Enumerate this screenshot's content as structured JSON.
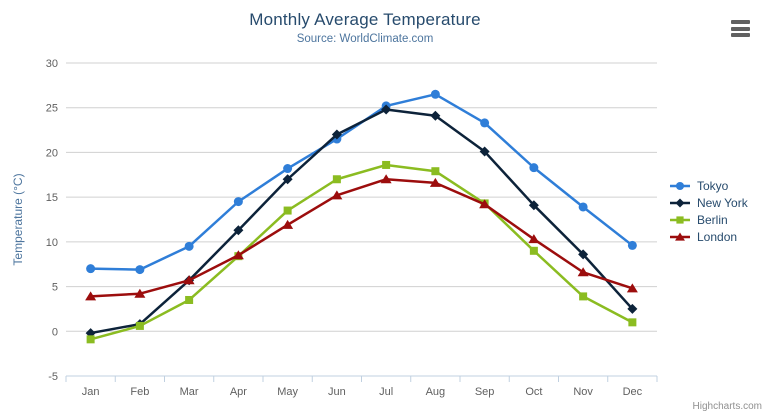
{
  "credits": "Highcharts.com",
  "chart_data": {
    "type": "line",
    "title": "Monthly Average Temperature",
    "subtitle": "Source: WorldClimate.com",
    "categories": [
      "Jan",
      "Feb",
      "Mar",
      "Apr",
      "May",
      "Jun",
      "Jul",
      "Aug",
      "Sep",
      "Oct",
      "Nov",
      "Dec"
    ],
    "series": [
      {
        "name": "Tokyo",
        "color": "#2f7ed8",
        "marker": "circle",
        "values": [
          7.0,
          6.9,
          9.5,
          14.5,
          18.2,
          21.5,
          25.2,
          26.5,
          23.3,
          18.3,
          13.9,
          9.6
        ]
      },
      {
        "name": "New York",
        "color": "#0d233a",
        "marker": "diamond",
        "values": [
          -0.2,
          0.8,
          5.7,
          11.3,
          17.0,
          22.0,
          24.8,
          24.1,
          20.1,
          14.1,
          8.6,
          2.5
        ]
      },
      {
        "name": "Berlin",
        "color": "#8bbc21",
        "marker": "square",
        "values": [
          -0.9,
          0.6,
          3.5,
          8.4,
          13.5,
          17.0,
          18.6,
          17.9,
          14.3,
          9.0,
          3.9,
          1.0
        ]
      },
      {
        "name": "London",
        "color": "#9c0d0d",
        "marker": "triangle",
        "values": [
          3.9,
          4.2,
          5.7,
          8.5,
          11.9,
          15.2,
          17.0,
          16.6,
          14.2,
          10.3,
          6.6,
          4.8
        ]
      }
    ],
    "xlabel": "",
    "ylabel": "Temperature (°C)",
    "ylim": [
      -5,
      30
    ],
    "ytick_interval": 5,
    "grid": true,
    "legend_position": "right",
    "colors": {
      "grid": "#d0d0d0",
      "axis_line": "#c0d0e0",
      "tick_label": "#606060",
      "axis_title": "#4d759e",
      "title": "#274b6d",
      "subtitle": "#4d759e",
      "legend_text": "#274b6d",
      "credits": "#909090"
    }
  }
}
